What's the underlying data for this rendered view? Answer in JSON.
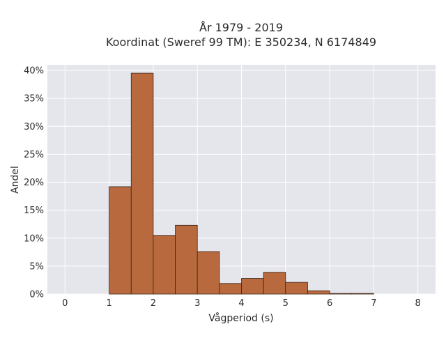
{
  "chart_data": {
    "type": "bar",
    "title_line1": "År 1979 - 2019",
    "title_line2": "Koordinat (Sweref 99 TM): E 350234, N 6174849",
    "xlabel": "Vågperiod (s)",
    "ylabel": "Andel",
    "xlim": [
      -0.4,
      8.4
    ],
    "ylim": [
      0,
      0.41
    ],
    "x_ticks": [
      0,
      1,
      2,
      3,
      4,
      5,
      6,
      7,
      8
    ],
    "x_tick_labels": [
      "0",
      "1",
      "2",
      "3",
      "4",
      "5",
      "6",
      "7",
      "8"
    ],
    "y_ticks": [
      0,
      0.05,
      0.1,
      0.15,
      0.2,
      0.25,
      0.3,
      0.35,
      0.4
    ],
    "y_tick_labels": [
      "0%",
      "5%",
      "10%",
      "15%",
      "20%",
      "25%",
      "30%",
      "35%",
      "40%"
    ],
    "bin_width": 0.5,
    "bins": [
      {
        "x0": 1.0,
        "value": 0.192
      },
      {
        "x0": 1.5,
        "value": 0.395
      },
      {
        "x0": 2.0,
        "value": 0.105
      },
      {
        "x0": 2.5,
        "value": 0.123
      },
      {
        "x0": 3.0,
        "value": 0.076
      },
      {
        "x0": 3.5,
        "value": 0.019
      },
      {
        "x0": 4.0,
        "value": 0.028
      },
      {
        "x0": 4.5,
        "value": 0.039
      },
      {
        "x0": 5.0,
        "value": 0.021
      },
      {
        "x0": 5.5,
        "value": 0.006
      },
      {
        "x0": 6.0,
        "value": 0.0012
      },
      {
        "x0": 6.5,
        "value": 0.0012
      }
    ],
    "grid": true,
    "colors": {
      "bar_fill": "#b86a3e",
      "bar_stroke": "#3a2418",
      "plot_bg": "#e5e5ec",
      "grid": "#ffffff"
    }
  }
}
